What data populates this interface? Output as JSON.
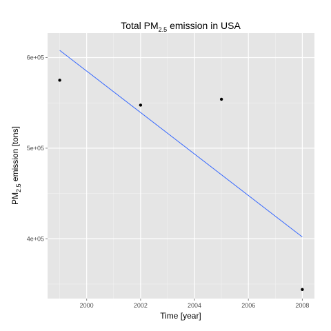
{
  "chart_data": {
    "type": "scatter",
    "title": {
      "prefix": "Total PM",
      "subscript": "2.5",
      "suffix": " emission in USA"
    },
    "xlabel": "Time [year]",
    "ylabel": {
      "prefix": "PM",
      "subscript": "2.5",
      "suffix": " emission [tons]"
    },
    "x_ticks": [
      2000,
      2002,
      2004,
      2006,
      2008
    ],
    "x_tick_labels": [
      "2000",
      "2002",
      "2004",
      "2006",
      "2008"
    ],
    "y_ticks": [
      400000,
      500000,
      600000
    ],
    "y_tick_labels": [
      "4e+05",
      "5e+05",
      "6e+05"
    ],
    "xlim": [
      1998.55,
      2008.45
    ],
    "ylim": [
      334000,
      627000
    ],
    "grid": true,
    "points": [
      {
        "x": 1999,
        "y": 575000
      },
      {
        "x": 2002,
        "y": 547500
      },
      {
        "x": 2005,
        "y": 554000
      },
      {
        "x": 2008,
        "y": 344000
      }
    ],
    "fit_line": {
      "x": [
        1999,
        2008
      ],
      "y": [
        608000,
        402000
      ],
      "color": "#3366FF"
    },
    "panel_color": "#E5E5E5",
    "point_color": "#000000"
  }
}
